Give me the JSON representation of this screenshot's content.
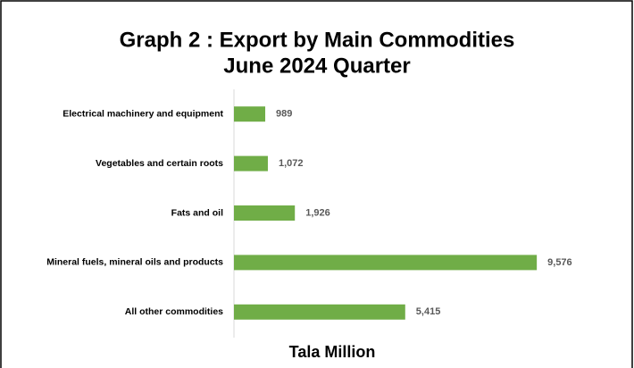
{
  "chart_data": {
    "type": "hbar",
    "title": "Graph 2 : Export by Main Commodities",
    "subtitle": "June 2024 Quarter",
    "x_label": "Tala Million",
    "categories": [
      "Electrical machinery and equipment",
      "Vegetables and certain roots",
      "Fats and oil",
      "Mineral fuels, mineral oils and products",
      "All other commodities"
    ],
    "values": [
      989,
      1072,
      1926,
      9576,
      5415
    ],
    "value_labels": [
      "989",
      "1,072",
      "1,926",
      "9,576",
      "5,415"
    ],
    "color": "#70ad47",
    "xlim": [
      0,
      12000
    ]
  }
}
